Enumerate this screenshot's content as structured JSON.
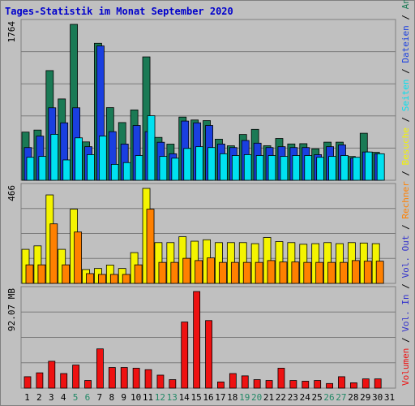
{
  "title": "Tages-Statistik im Monat September 2020",
  "colors": {
    "background": "#c0c0c0",
    "title": "#0000cc",
    "anfragen": "#1a7a55",
    "dateien": "#1a3fe0",
    "seiten": "#00e1f0",
    "besuche": "#f4f400",
    "rechner": "#ff8000",
    "volumen": "#ee1111",
    "weekend": "#228866",
    "weekday": "#000000"
  },
  "chart_data": [
    {
      "type": "bar",
      "panel": "top",
      "ymax_label": "1764",
      "ylim": [
        0,
        1764
      ],
      "x": [
        "1",
        "2",
        "3",
        "4",
        "5",
        "6",
        "7",
        "8",
        "9",
        "10",
        "11",
        "12",
        "13",
        "14",
        "15",
        "16",
        "17",
        "18",
        "19",
        "20",
        "21",
        "22",
        "23",
        "24",
        "25",
        "26",
        "27",
        "28",
        "29",
        "30",
        "31"
      ],
      "series": [
        {
          "name": "Anfragen",
          "values": [
            545,
            568,
            1241,
            920,
            1764,
            434,
            1550,
            822,
            653,
            796,
            1396,
            485,
            409,
            715,
            682,
            675,
            465,
            390,
            518,
            576,
            391,
            473,
            411,
            414,
            356,
            431,
            431,
            269,
            532,
            316,
            0
          ]
        },
        {
          "name": "Dateien",
          "values": [
            370,
            500,
            820,
            650,
            820,
            380,
            1520,
            550,
            410,
            620,
            550,
            430,
            300,
            670,
            650,
            620,
            410,
            370,
            450,
            420,
            370,
            380,
            370,
            370,
            290,
            380,
            400,
            250,
            320,
            300,
            0
          ]
        },
        {
          "name": "Seiten",
          "values": [
            260,
            270,
            520,
            230,
            480,
            290,
            500,
            180,
            200,
            280,
            730,
            270,
            250,
            360,
            380,
            370,
            300,
            280,
            290,
            280,
            280,
            270,
            280,
            280,
            260,
            270,
            280,
            260,
            320,
            300,
            0
          ]
        }
      ],
      "legend": [
        "Anfragen",
        "Dateien",
        "Seiten"
      ]
    },
    {
      "type": "bar",
      "panel": "middle",
      "ymax_label": "466",
      "ylim": [
        0,
        466
      ],
      "x": [
        "1",
        "2",
        "3",
        "4",
        "5",
        "6",
        "7",
        "8",
        "9",
        "10",
        "11",
        "12",
        "13",
        "14",
        "15",
        "16",
        "17",
        "18",
        "19",
        "20",
        "21",
        "22",
        "23",
        "24",
        "25",
        "26",
        "27",
        "28",
        "29",
        "30",
        "31"
      ],
      "series": [
        {
          "name": "Besuche",
          "values": [
            167,
            184,
            434,
            167,
            364,
            68,
            73,
            90,
            73,
            151,
            466,
            200,
            200,
            229,
            207,
            214,
            200,
            200,
            200,
            195,
            225,
            205,
            200,
            192,
            195,
            200,
            195,
            200,
            198,
            195,
            0
          ]
        },
        {
          "name": "Rechner",
          "values": [
            91,
            91,
            292,
            91,
            252,
            48,
            44,
            44,
            44,
            91,
            364,
            103,
            103,
            123,
            112,
            125,
            103,
            103,
            103,
            103,
            112,
            105,
            105,
            103,
            103,
            103,
            103,
            112,
            109,
            109,
            0
          ]
        }
      ],
      "legend": [
        "Besuche",
        "Rechner"
      ]
    },
    {
      "type": "bar",
      "panel": "bottom",
      "ymax_label": "92.07 MB",
      "ylim": [
        0,
        92.07
      ],
      "x": [
        "1",
        "2",
        "3",
        "4",
        "5",
        "6",
        "7",
        "8",
        "9",
        "10",
        "11",
        "12",
        "13",
        "14",
        "15",
        "16",
        "17",
        "18",
        "19",
        "20",
        "21",
        "22",
        "23",
        "24",
        "25",
        "26",
        "27",
        "28",
        "29",
        "30",
        "31"
      ],
      "series": [
        {
          "name": "Volumen",
          "values": [
            10.9,
            14.6,
            25.6,
            13.9,
            22.0,
            7.3,
            37.4,
            19.7,
            19.7,
            19.0,
            17.6,
            12.4,
            8.1,
            63.0,
            92.07,
            64.4,
            5.9,
            13.9,
            11.7,
            8.1,
            7.3,
            19.0,
            7.3,
            6.6,
            7.3,
            4.4,
            10.9,
            5.1,
            8.8,
            8.8,
            0
          ]
        }
      ],
      "legend": [
        "Volumen",
        "Vol. In",
        "Vol. Out"
      ]
    }
  ],
  "day_labels": [
    "1",
    "2",
    "3",
    "4",
    "5",
    "6",
    "7",
    "8",
    "9",
    "10",
    "11",
    "12",
    "13",
    "14",
    "15",
    "16",
    "17",
    "18",
    "19",
    "20",
    "21",
    "22",
    "23",
    "24",
    "25",
    "26",
    "27",
    "28",
    "29",
    "30",
    "31"
  ],
  "weekend_days": [
    "5",
    "6",
    "12",
    "13",
    "19",
    "20",
    "26",
    "27"
  ],
  "right_legend": {
    "top": [
      {
        "text": "Anfragen",
        "color": "#1a7a55"
      },
      {
        "text": " / ",
        "color": "#000000"
      },
      {
        "text": "Dateien",
        "color": "#1a3fe0"
      },
      {
        "text": " / ",
        "color": "#000000"
      },
      {
        "text": "Seiten",
        "color": "#00e1f0"
      },
      {
        "text": " / ",
        "color": "#000000"
      },
      {
        "text": "Besuche",
        "color": "#f4f400"
      },
      {
        "text": " / ",
        "color": "#000000"
      },
      {
        "text": "Rechner",
        "color": "#ff8000"
      },
      {
        "text": " / ",
        "color": "#000000"
      },
      {
        "text": "Vol. Out",
        "color": "#3333cc"
      },
      {
        "text": " / ",
        "color": "#000000"
      },
      {
        "text": "Vol. In",
        "color": "#3333cc"
      },
      {
        "text": " / ",
        "color": "#000000"
      },
      {
        "text": "Volumen",
        "color": "#ee1111"
      }
    ]
  }
}
